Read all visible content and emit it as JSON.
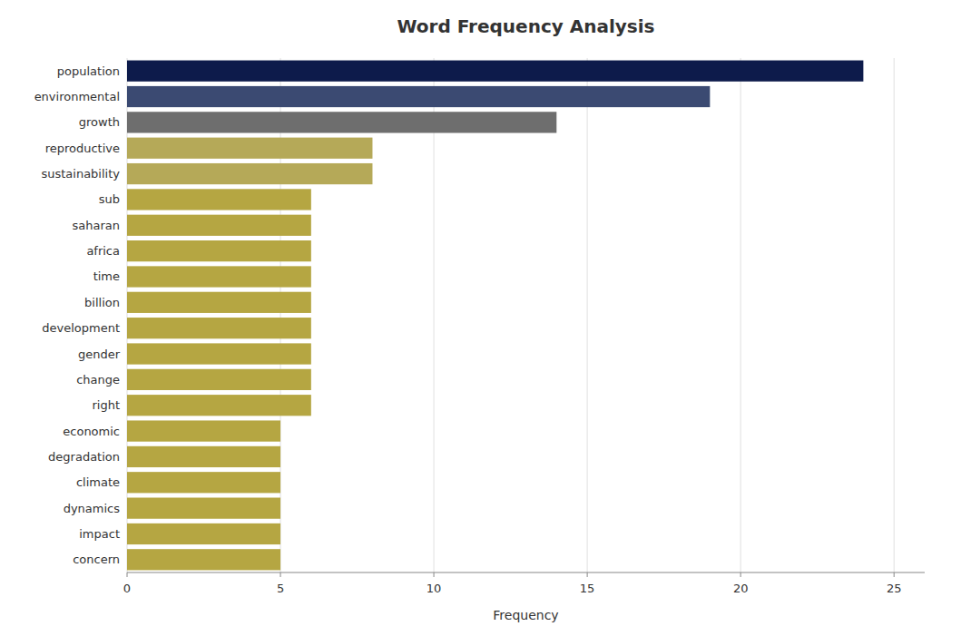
{
  "chart_data": {
    "type": "bar",
    "orientation": "horizontal",
    "title": "Word Frequency Analysis",
    "xlabel": "Frequency",
    "categories": [
      "concern",
      "impact",
      "dynamics",
      "climate",
      "degradation",
      "economic",
      "right",
      "change",
      "gender",
      "development",
      "billion",
      "time",
      "africa",
      "saharan",
      "sub",
      "sustainability",
      "reproductive",
      "growth",
      "environmental",
      "population"
    ],
    "values": [
      5,
      5,
      5,
      5,
      5,
      5,
      6,
      6,
      6,
      6,
      6,
      6,
      6,
      6,
      6,
      8,
      8,
      14,
      19,
      24
    ],
    "colors": [
      "#b5a642",
      "#b5a642",
      "#b5a642",
      "#b5a642",
      "#b5a642",
      "#b5a642",
      "#b5a642",
      "#b5a642",
      "#b5a642",
      "#b5a642",
      "#b5a642",
      "#b5a642",
      "#b5a642",
      "#b5a642",
      "#b5a642",
      "#b5a958",
      "#b5a958",
      "#6e6e6e",
      "#3b4a72",
      "#0d1b4b"
    ],
    "xlim": [
      0,
      26
    ],
    "xticks": [
      0,
      5,
      10,
      15,
      20,
      25
    ],
    "grid": true
  }
}
